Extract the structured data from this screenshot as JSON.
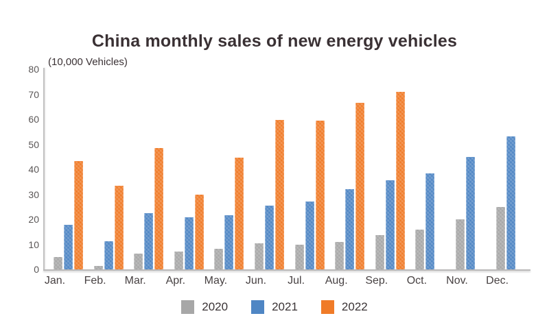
{
  "title": "China monthly sales of new energy vehicles",
  "y_axis_unit_label": "(10,000 Vehicles)",
  "colors": {
    "series_2020": "#a7a7a7",
    "series_2021": "#4f86c4",
    "series_2022": "#f07b28",
    "axis_line": "#bdbcbc",
    "tick_text": "#5a5656",
    "title_text": "#3a3134"
  },
  "chart_data": {
    "type": "bar",
    "title": "China monthly sales of new energy vehicles",
    "ylabel": "(10,000 Vehicles)",
    "xlabel": "",
    "categories": [
      "Jan.",
      "Feb.",
      "Mar.",
      "Apr.",
      "May.",
      "Jun.",
      "Jul.",
      "Aug.",
      "Sep.",
      "Oct.",
      "Nov.",
      "Dec."
    ],
    "series": [
      {
        "name": "2020",
        "color": "#a7a7a7",
        "values": [
          5,
          1.4,
          6.4,
          7.2,
          8.2,
          10.3,
          9.8,
          10.9,
          13.8,
          16,
          20,
          24.8
        ]
      },
      {
        "name": "2021",
        "color": "#4f86c4",
        "values": [
          17.9,
          11.1,
          22.6,
          20.7,
          21.7,
          25.5,
          27.1,
          32,
          35.6,
          38.3,
          45,
          53.1
        ]
      },
      {
        "name": "2022",
        "color": "#f07b28",
        "values": [
          43.2,
          33.5,
          48.4,
          29.8,
          44.7,
          59.6,
          59.4,
          66.7,
          71,
          null,
          null,
          null
        ]
      }
    ],
    "ylim": [
      0,
      80
    ],
    "yticks": [
      0,
      10,
      20,
      30,
      40,
      50,
      60,
      70,
      80
    ],
    "grid": false,
    "legend_position": "bottom"
  },
  "legend": {
    "items": [
      {
        "label": "2020",
        "color": "#a7a7a7"
      },
      {
        "label": "2021",
        "color": "#4f86c4"
      },
      {
        "label": "2022",
        "color": "#f07b28"
      }
    ]
  }
}
